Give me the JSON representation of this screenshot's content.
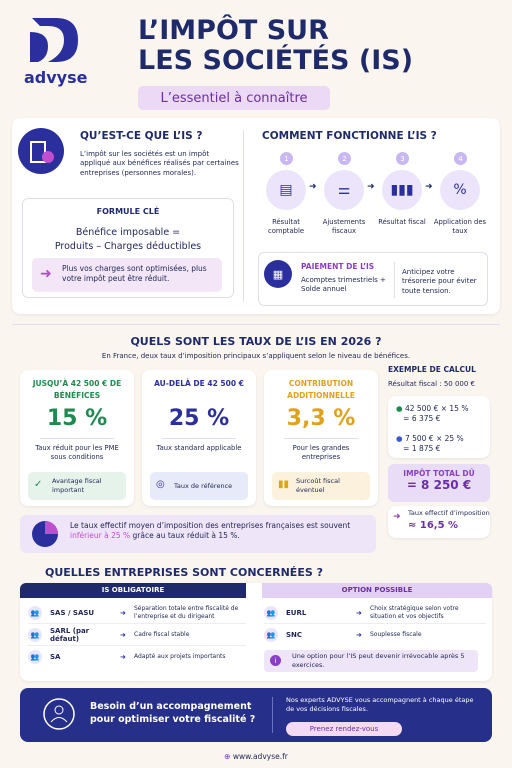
{
  "header": {
    "logo": "advyse",
    "title_line1": "L’IMPÔT SUR",
    "title_line2": "LES SOCIÉTÉS (IS)",
    "subtitle": "L’essentiel à connaître"
  },
  "what": {
    "heading": "QU’EST-CE QUE L’IS ?",
    "text": "L’impôt sur les sociétés est un impôt appliqué aux bénéfices réalisés par certaines entreprises (personnes morales).",
    "formula_title": "FORMULE CLÉ",
    "formula_line1": "Bénéfice imposable =",
    "formula_line2": "Produits – Charges déductibles",
    "tip": "Plus vos charges sont optimisées, plus votre impôt peut être réduit."
  },
  "how": {
    "heading": "COMMENT FONCTIONNE L’IS ?",
    "steps": [
      {
        "number": "1",
        "label": "Résultat comptable"
      },
      {
        "number": "2",
        "label": "Ajustements fiscaux"
      },
      {
        "number": "3",
        "label": "Résultat fiscal"
      },
      {
        "number": "4",
        "label": "Application des taux"
      }
    ],
    "payment_title": "PAIEMENT DE L’IS",
    "payment_text": "Acomptes trimestriels + Solde annuel",
    "payment_tip": "Anticipez votre trésorerie pour éviter toute tension."
  },
  "rates": {
    "heading": "QUELS SONT LES TAUX DE L’IS EN 2026 ?",
    "intro": "En France, deux taux d’imposition principaux s’appliquent selon le niveau de bénéfices.",
    "cards": [
      {
        "title": "JUSQU’À 42 500 € DE BÉNÉFICES",
        "rate": "15 %",
        "text": "Taux réduit pour les PME sous conditions",
        "badge": "Avantage fiscal important"
      },
      {
        "title": "AU-DELÀ DE 42 500 €",
        "rate": "25 %",
        "text": "Taux standard applicable",
        "badge": "Taux de référence"
      },
      {
        "title": "CONTRIBUTION ADDITIONNELLE",
        "rate": "3,3 %",
        "text": "Pour les grandes entreprises",
        "badge": "Surcoût fiscal éventuel"
      }
    ],
    "example": {
      "title": "EXEMPLE DE CALCUL",
      "base": "Résultat fiscal : 50 000 €",
      "line1": "42 500 € × 15 %",
      "result1": "= 6 375 €",
      "line2": "7 500 € × 25 %",
      "result2": "= 1 875 €",
      "total_label": "IMPÔT TOTAL DÛ",
      "total": "= 8 250 €",
      "effective_label": "Taux effectif d’imposition",
      "effective": "≈ 16,5 %"
    },
    "note_before": "Le taux effectif moyen d’imposition des entreprises françaises est souvent",
    "note_highlight": "inférieur à 25 %",
    "note_after": "grâce au taux réduit à 15 %."
  },
  "who": {
    "heading": "QUELLES ENTREPRISES SONT CONCERNÉES ?",
    "mandatory_title": "IS OBLIGATOIRE",
    "mandatory": [
      {
        "form": "SAS / SASU",
        "desc": "Séparation totale entre fiscalité de l’entreprise et du dirigeant"
      },
      {
        "form": "SARL (par défaut)",
        "desc": "Cadre fiscal stable"
      },
      {
        "form": "SA",
        "desc": "Adapté aux projets importants"
      }
    ],
    "optional_title": "OPTION POSSIBLE",
    "optional": [
      {
        "form": "EURL",
        "desc": "Choix stratégique selon votre situation et vos objectifs"
      },
      {
        "form": "SNC",
        "desc": "Souplesse fiscale"
      }
    ],
    "optional_note": "Une option pour l’IS peut devenir irrévocable après 5 exercices."
  },
  "cta": {
    "question": "Besoin d’un accompagnement pour optimiser votre fiscalité ?",
    "text": "Nos experts ADVYSE vous accompagnent à chaque étape de vos décisions fiscales.",
    "button": "Prenez rendez-vous",
    "website": "www.advyse.fr"
  }
}
